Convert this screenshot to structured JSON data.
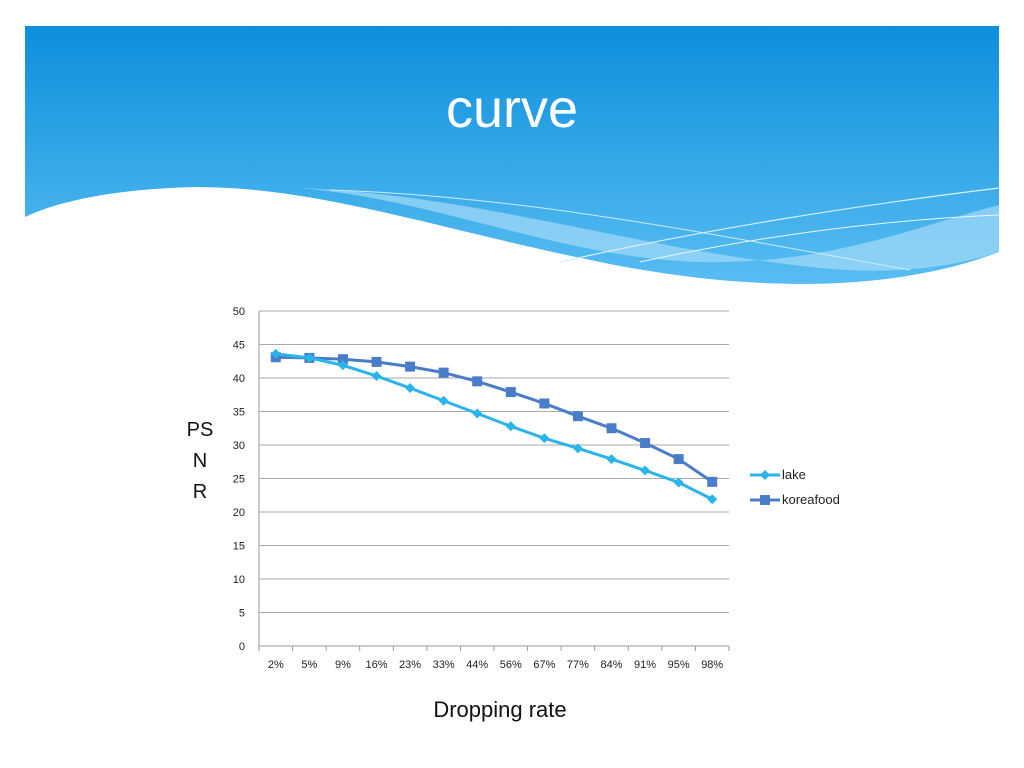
{
  "slide": {
    "title": "curve"
  },
  "chart_data": {
    "type": "line",
    "title": "",
    "xlabel": "Dropping rate",
    "ylabel": "PSNR",
    "ylim": [
      0,
      50
    ],
    "yticks": [
      0,
      5,
      10,
      15,
      20,
      25,
      30,
      35,
      40,
      45,
      50
    ],
    "grid": true,
    "legend_position": "right",
    "categories": [
      "2%",
      "5%",
      "9%",
      "16%",
      "23%",
      "33%",
      "44%",
      "56%",
      "67%",
      "77%",
      "84%",
      "91%",
      "95%",
      "98%"
    ],
    "series": [
      {
        "name": "lake",
        "color": "#2ab4ea",
        "marker": "diamond",
        "values": [
          43.6,
          43.0,
          41.9,
          40.3,
          38.5,
          36.6,
          34.7,
          32.8,
          31.0,
          29.5,
          27.9,
          26.2,
          24.4,
          21.9
        ]
      },
      {
        "name": "koreafood",
        "color": "#4a7dc9",
        "marker": "square",
        "values": [
          43.1,
          43.0,
          42.8,
          42.4,
          41.7,
          40.8,
          39.5,
          37.9,
          36.2,
          34.3,
          32.5,
          30.3,
          27.9,
          24.5
        ]
      }
    ]
  }
}
